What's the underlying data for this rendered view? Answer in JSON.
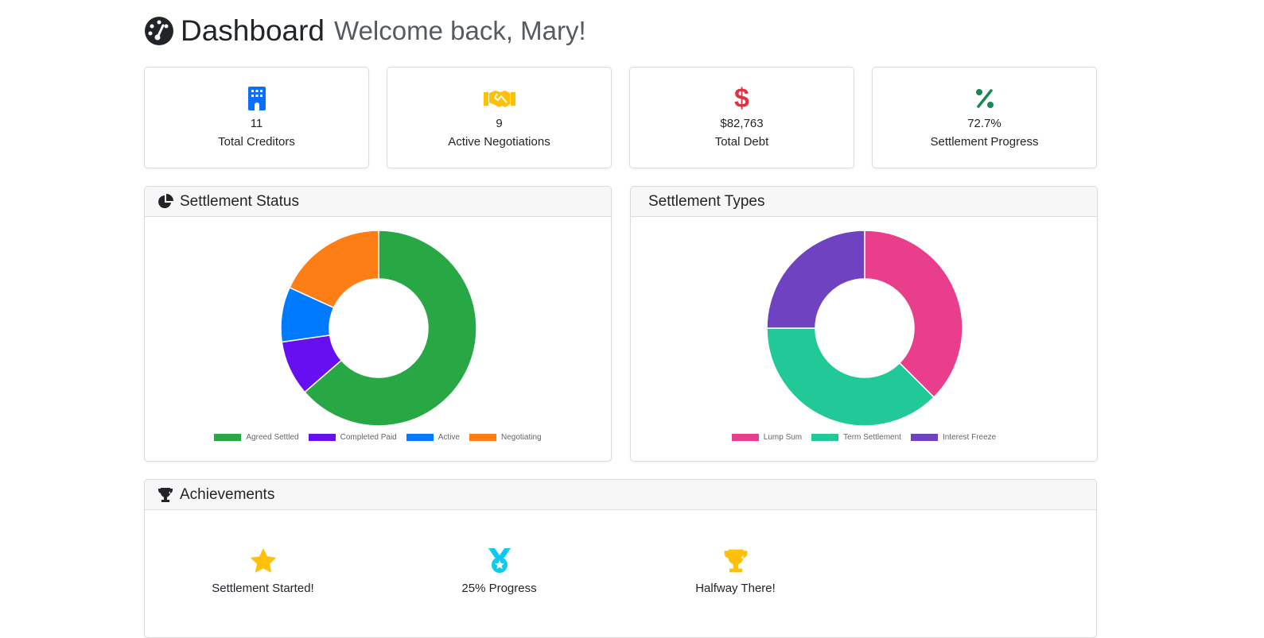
{
  "header": {
    "title": "Dashboard",
    "subtitle": "Welcome back, Mary!",
    "icon": "gauge-icon"
  },
  "stats": [
    {
      "icon": "building-icon",
      "value": "11",
      "label": "Total Creditors",
      "color": "#0d6efd"
    },
    {
      "icon": "handshake-icon",
      "value": "9",
      "label": "Active Negotiations",
      "color": "#ffc107"
    },
    {
      "icon": "dollar-icon",
      "value": "$82,763",
      "label": "Total Debt",
      "color": "#dc3545"
    },
    {
      "icon": "percent-icon",
      "value": "72.7%",
      "label": "Settlement Progress",
      "color": "#198754"
    }
  ],
  "chart_data": [
    {
      "type": "pie",
      "donut": true,
      "title": "Settlement Status",
      "legend": "bottom",
      "categories": [
        "Agreed Settled",
        "Completed Paid",
        "Active",
        "Negotiating"
      ],
      "values": [
        7,
        1,
        1,
        2
      ],
      "colors": [
        "#28a745",
        "#6610f2",
        "#007bff",
        "#fd7e14"
      ]
    },
    {
      "type": "pie",
      "donut": true,
      "title": "Settlement Types",
      "legend": "bottom",
      "categories": [
        "Lump Sum",
        "Term Settlement",
        "Interest Freeze"
      ],
      "values": [
        3,
        3,
        2
      ],
      "colors": [
        "#e83e8c",
        "#20c997",
        "#6f42c1"
      ]
    }
  ],
  "achievements": {
    "title": "Achievements",
    "items": [
      {
        "icon": "star-icon",
        "label": "Settlement Started!",
        "color": "#ffc107"
      },
      {
        "icon": "medal-icon",
        "label": "25% Progress",
        "color": "#0dcaf0"
      },
      {
        "icon": "trophy-icon",
        "label": "Halfway There!",
        "color": "#ffc107"
      }
    ]
  }
}
